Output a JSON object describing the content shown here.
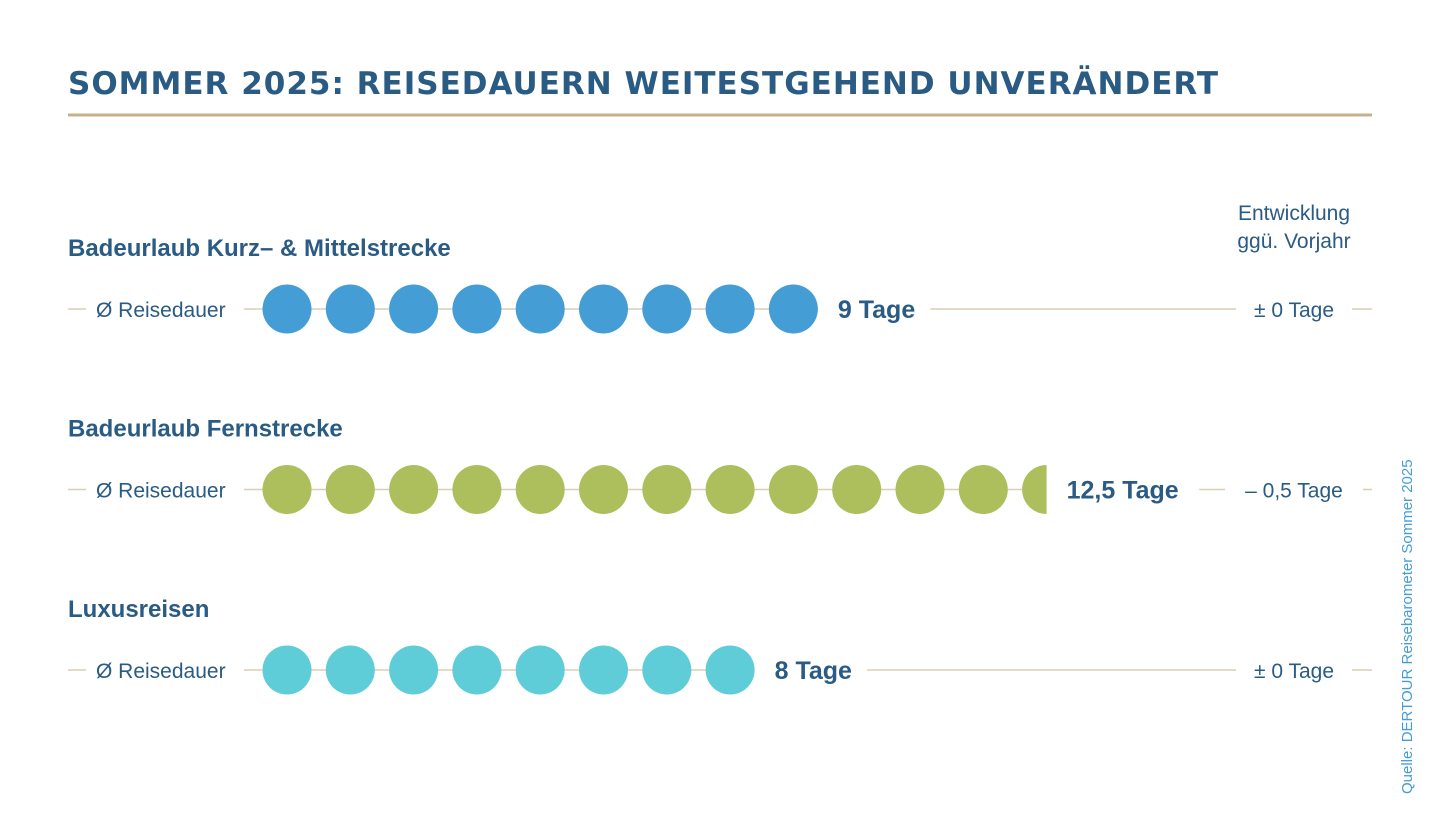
{
  "colors": {
    "title": "#2a5b84",
    "rule": "#c9b08c",
    "lines": "#dccdb6",
    "text": "#2a5b84"
  },
  "chart_data": {
    "type": "dot",
    "title": "SOMMER 2025: REISEDAUERN WEITESTGEHEND UNVERÄNDERT",
    "column_header": [
      "Entwicklung",
      "ggü. Vorjahr"
    ],
    "row_label": "Ø Reisedauer",
    "unit": "Tage",
    "source": "Quelle: DERTOUR Reisebarometer Sommer 2025",
    "series": [
      {
        "name": "Badeurlaub Kurz- & Mittelstrecke",
        "value": 9,
        "value_label": "9 Tage",
        "change_label": "± 0 Tage",
        "color": "#459dd6"
      },
      {
        "name": "Badeurlaub Fernstrecke",
        "value": 12.5,
        "value_label": "12,5 Tage",
        "change_label": "– 0,5 Tage",
        "color": "#acbf5c"
      },
      {
        "name": "Luxusreisen",
        "value": 8,
        "value_label": "8 Tage",
        "change_label": "± 0 Tage",
        "color": "#5fcdd7"
      }
    ]
  }
}
